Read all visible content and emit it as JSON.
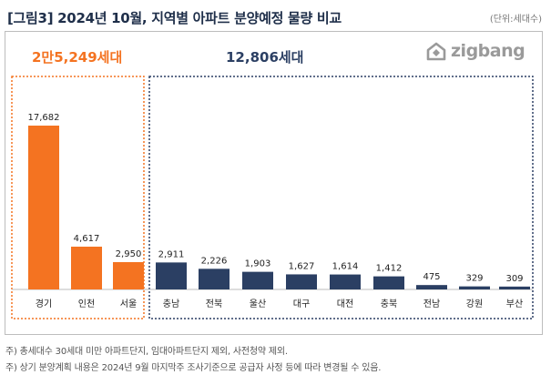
{
  "header": {
    "title": "[그림3] 2024년 10월, 지역별 아파트 분양예정 물량 비교",
    "unit": "(단위:세대수)"
  },
  "logo": {
    "text": "zigbang"
  },
  "groups": [
    {
      "total_label": "2만5,249세대",
      "color": "#f47321"
    },
    {
      "total_label": "12,806세대",
      "color": "#2b3f63"
    }
  ],
  "chart_data": {
    "type": "bar",
    "categories": [
      "경기",
      "인천",
      "서울",
      "충남",
      "전북",
      "울산",
      "대구",
      "대전",
      "충북",
      "전남",
      "강원",
      "부산"
    ],
    "values": [
      17682,
      4617,
      2950,
      2911,
      2226,
      1903,
      1627,
      1614,
      1412,
      475,
      329,
      309
    ],
    "value_labels": [
      "17,682",
      "4,617",
      "2,950",
      "2,911",
      "2,226",
      "1,903",
      "1,627",
      "1,614",
      "1,412",
      "475",
      "329",
      "309"
    ],
    "colors": [
      "#f47321",
      "#f47321",
      "#f47321",
      "#2b3f63",
      "#2b3f63",
      "#2b3f63",
      "#2b3f63",
      "#2b3f63",
      "#2b3f63",
      "#2b3f63",
      "#2b3f63",
      "#2b3f63"
    ],
    "ylim": [
      0,
      20000
    ],
    "grid": false
  },
  "footnotes": [
    "주) 총세대수 30세대 미만 아파트단지, 임대아파트단지 제외, 사전청약 제외.",
    "주) 상기 분양계획 내용은 2024년 9월 마지막주 조사기준으로 공급자 사정 등에 따라 변경될 수 있음."
  ]
}
